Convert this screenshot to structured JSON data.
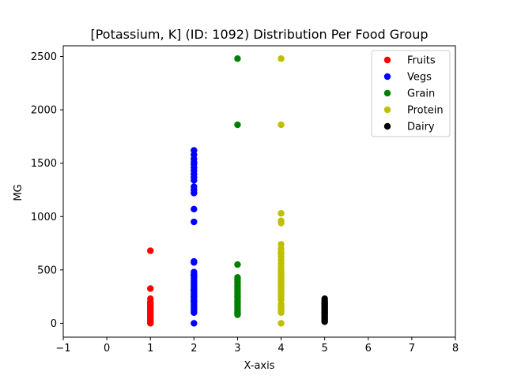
{
  "chart_data": {
    "type": "scatter",
    "title": "[Potassium, K] (ID: 1092) Distribution Per Food Group",
    "xlabel": "X-axis",
    "ylabel": "MG",
    "xlim": [
      -1,
      8
    ],
    "ylim": [
      -130,
      2600
    ],
    "xticks": [
      -1,
      0,
      1,
      2,
      3,
      4,
      5,
      6,
      7,
      8
    ],
    "yticks": [
      0,
      500,
      1000,
      1500,
      2000,
      2500
    ],
    "grid": false,
    "legend_position": "top-right",
    "series": [
      {
        "name": "Fruits",
        "color": "#ff0000",
        "x": [
          1,
          1,
          1,
          1,
          1,
          1,
          1,
          1,
          1,
          1,
          1,
          1,
          1,
          1,
          1,
          1,
          1,
          1
        ],
        "y": [
          680,
          325,
          230,
          200,
          185,
          170,
          155,
          140,
          125,
          110,
          95,
          80,
          65,
          50,
          35,
          20,
          5,
          0
        ]
      },
      {
        "name": "Vegs",
        "color": "#0000ff",
        "x": [
          2,
          2,
          2,
          2,
          2,
          2,
          2,
          2,
          2,
          2,
          2,
          2,
          2,
          2,
          2,
          2,
          2,
          2,
          2,
          2,
          2,
          2,
          2,
          2,
          2,
          2,
          2,
          2,
          2,
          2,
          2,
          2,
          2,
          2,
          2,
          2,
          2,
          2,
          2,
          2,
          2,
          2
        ],
        "y": [
          1620,
          1580,
          1540,
          1510,
          1490,
          1460,
          1430,
          1400,
          1370,
          1340,
          1280,
          1250,
          1220,
          1070,
          950,
          580,
          570,
          480,
          460,
          440,
          420,
          400,
          380,
          360,
          340,
          320,
          300,
          280,
          260,
          240,
          220,
          200,
          180,
          160,
          140,
          120,
          100,
          0,
          310,
          250,
          210,
          450
        ]
      },
      {
        "name": "Grain",
        "color": "#008000",
        "x": [
          3,
          3,
          3,
          3,
          3,
          3,
          3,
          3,
          3,
          3,
          3,
          3,
          3,
          3,
          3,
          3,
          3,
          3,
          3,
          3,
          3,
          3,
          3
        ],
        "y": [
          2480,
          1860,
          550,
          430,
          410,
          390,
          370,
          350,
          330,
          270,
          250,
          230,
          210,
          190,
          170,
          150,
          135,
          120,
          105,
          90,
          80,
          290,
          310
        ]
      },
      {
        "name": "Protein",
        "color": "#bfbf00",
        "x": [
          4,
          4,
          4,
          4,
          4,
          4,
          4,
          4,
          4,
          4,
          4,
          4,
          4,
          4,
          4,
          4,
          4,
          4,
          4,
          4,
          4,
          4,
          4,
          4,
          4,
          4,
          4,
          4,
          4,
          4,
          4,
          4,
          4,
          4,
          4,
          4
        ],
        "y": [
          2480,
          1860,
          1030,
          960,
          940,
          740,
          700,
          670,
          650,
          620,
          590,
          560,
          530,
          480,
          460,
          440,
          420,
          400,
          380,
          360,
          340,
          320,
          300,
          280,
          260,
          240,
          220,
          180,
          160,
          140,
          120,
          100,
          0,
          500,
          410,
          350
        ]
      },
      {
        "name": "Dairy",
        "color": "#000000",
        "x": [
          5,
          5,
          5,
          5,
          5,
          5,
          5,
          5,
          5,
          5,
          5,
          5,
          5,
          5,
          5,
          5,
          5,
          5,
          5,
          5
        ],
        "y": [
          230,
          210,
          195,
          185,
          175,
          165,
          155,
          145,
          135,
          125,
          115,
          105,
          95,
          85,
          75,
          60,
          50,
          40,
          25,
          15
        ]
      }
    ]
  }
}
